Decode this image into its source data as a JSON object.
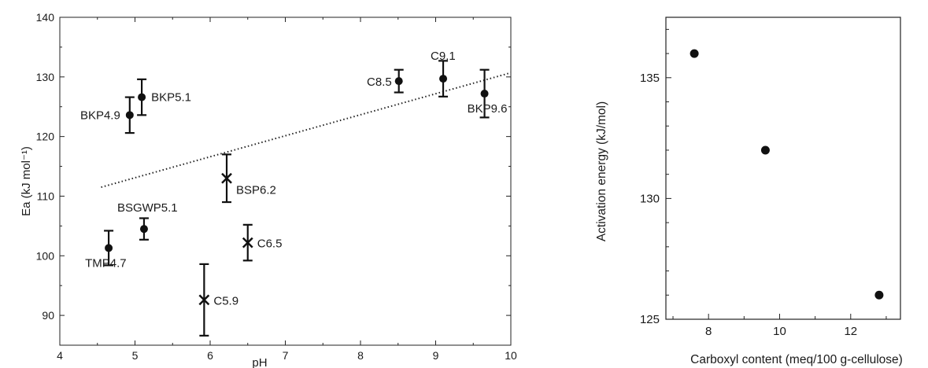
{
  "chart_data": [
    {
      "type": "scatter",
      "title": "",
      "xlabel": "pH",
      "ylabel": "Ea (kJ mol⁻¹)",
      "xlim": [
        4,
        10
      ],
      "ylim": [
        85,
        140
      ],
      "xticks": [
        4,
        5,
        6,
        7,
        8,
        9,
        10
      ],
      "yticks": [
        90,
        100,
        110,
        120,
        130,
        140
      ],
      "grid": false,
      "points": [
        {
          "label": "TMP4.7",
          "x": 4.65,
          "y": 101.3,
          "err": 2.9,
          "marker": "circle"
        },
        {
          "label": "BKP4.9",
          "x": 4.93,
          "y": 123.6,
          "err": 3.0,
          "marker": "circle"
        },
        {
          "label": "BKP5.1",
          "x": 5.09,
          "y": 126.6,
          "err": 3.0,
          "marker": "circle"
        },
        {
          "label": "BSGWP5.1",
          "x": 5.12,
          "y": 104.5,
          "err": 1.8,
          "marker": "circle"
        },
        {
          "label": "C5.9",
          "x": 5.92,
          "y": 92.6,
          "err": 6.0,
          "marker": "cross"
        },
        {
          "label": "BSP6.2",
          "x": 6.22,
          "y": 113.0,
          "err": 4.0,
          "marker": "cross"
        },
        {
          "label": "C6.5",
          "x": 6.5,
          "y": 102.2,
          "err": 3.0,
          "marker": "cross"
        },
        {
          "label": "C8.5",
          "x": 8.51,
          "y": 129.3,
          "err": 1.9,
          "marker": "circle"
        },
        {
          "label": "C9.1",
          "x": 9.1,
          "y": 129.7,
          "err": 3.0,
          "marker": "circle"
        },
        {
          "label": "BKP9.6",
          "x": 9.65,
          "y": 127.2,
          "err": 4.0,
          "marker": "circle"
        }
      ],
      "trendline": {
        "style": "dotted",
        "x": [
          4.55,
          10.0
        ],
        "y": [
          111.5,
          130.7
        ]
      }
    },
    {
      "type": "scatter",
      "title": "",
      "xlabel": "Carboxyl content (meq/100 g-cellulose)",
      "ylabel": "Activation energy (kJ/mol)",
      "xlim": [
        6.8,
        13.4
      ],
      "ylim": [
        125,
        137.5
      ],
      "xticks": [
        8,
        10,
        12
      ],
      "yticks": [
        125,
        130,
        135
      ],
      "grid": false,
      "points": [
        {
          "x": 7.6,
          "y": 136.0
        },
        {
          "x": 9.6,
          "y": 132.0
        },
        {
          "x": 12.8,
          "y": 126.0
        }
      ]
    }
  ]
}
